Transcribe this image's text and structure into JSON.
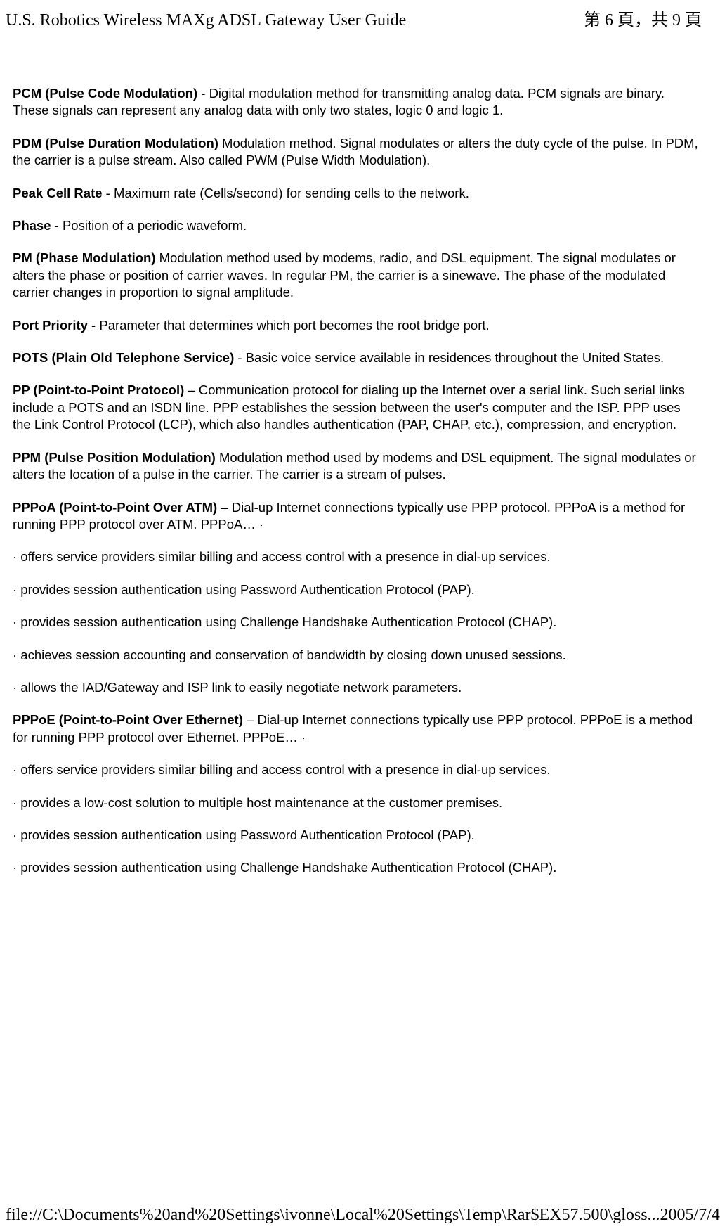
{
  "header": {
    "title": "U.S. Robotics Wireless MAXg ADSL Gateway User Guide",
    "page_indicator": "第 6 頁，共 9 頁"
  },
  "glossary": [
    {
      "term": "PCM (Pulse Code Modulation)",
      "sep": " - ",
      "def": "Digital modulation method for transmitting analog data. PCM signals are binary. These signals can represent any analog data with only two states, logic 0 and logic 1."
    },
    {
      "term": "PDM (Pulse Duration Modulation)",
      "sep": " ",
      "def": "Modulation method. Signal modulates or alters the duty cycle of the pulse. In PDM, the carrier is a pulse stream. Also called PWM (Pulse Width Modulation)."
    },
    {
      "term": "Peak Cell Rate",
      "sep": " - ",
      "def": "Maximum rate (Cells/second) for sending cells to the network."
    },
    {
      "term": "Phase",
      "sep": " - ",
      "def": "Position of a periodic waveform."
    },
    {
      "term": "PM (Phase Modulation)",
      "sep": " ",
      "def": "Modulation method used by modems, radio, and DSL equipment. The signal modulates or alters the phase or position of carrier waves. In regular PM, the carrier is a sinewave. The phase of the modulated carrier changes in proportion to signal amplitude."
    },
    {
      "term": "Port Priority",
      "sep": " - ",
      "def": "Parameter that determines which port becomes the root bridge port."
    },
    {
      "term": "POTS (Plain Old Telephone Service)",
      "sep": " - ",
      "def": "Basic voice service available in residences throughout the United States."
    },
    {
      "term": "PP (Point-to-Point Protocol)",
      "sep": " – ",
      "def": "Communication protocol for dialing up the Internet over a serial link. Such serial links include a POTS and an ISDN line. PPP establishes the session between the user's computer and the ISP. PPP uses the Link Control Protocol (LCP), which also handles authentication (PAP, CHAP, etc.), compression, and encryption."
    },
    {
      "term": "PPM (Pulse Position Modulation)",
      "sep": " ",
      "def": "Modulation method used by modems and DSL equipment. The signal modulates or alters the location of a pulse in the carrier. The carrier is a stream of pulses."
    },
    {
      "term": "PPPoA (Point-to-Point Over ATM)",
      "sep": " – ",
      "def": "Dial-up Internet connections typically use PPP protocol. PPPoA is a method for running PPP protocol over ATM. PPPoA… ·"
    }
  ],
  "pppoa_bullets": [
    "· offers service providers similar billing and access control with a presence in dial-up services.",
    "· provides session authentication using Password Authentication Protocol (PAP).",
    "· provides session authentication using Challenge Handshake Authentication Protocol (CHAP).",
    "· achieves session accounting and conservation of bandwidth by closing down unused sessions.",
    "· allows the IAD/Gateway and ISP link to easily negotiate network parameters."
  ],
  "pppoe": {
    "term": "PPPoE (Point-to-Point Over Ethernet)",
    "sep": " – ",
    "def": "Dial-up Internet connections typically use PPP protocol. PPPoE is a method for running PPP protocol over Ethernet. PPPoE… ·"
  },
  "pppoe_bullets": [
    "· offers service providers similar billing and access control with a presence in dial-up services.",
    "· provides a low-cost solution to multiple host maintenance at the customer premises.",
    "· provides session authentication using Password Authentication Protocol (PAP).",
    "· provides session authentication using Challenge Handshake Authentication Protocol (CHAP)."
  ],
  "footer": {
    "path": "file://C:\\Documents%20and%20Settings\\ivonne\\Local%20Settings\\Temp\\Rar$EX57.500\\gloss...",
    "date": "2005/7/4"
  }
}
